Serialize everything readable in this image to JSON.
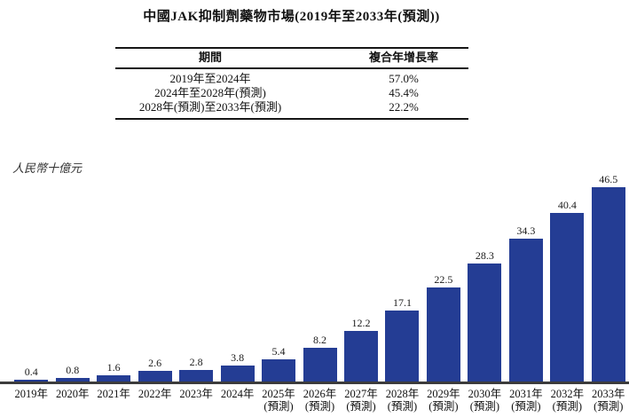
{
  "title": "中國JAK抑制劑藥物市場(2019年至2033年(預測))",
  "cagr_table": {
    "headers": {
      "period": "期間",
      "cagr": "複合年增長率"
    },
    "rows": [
      {
        "period": "2019年至2024年",
        "cagr": "57.0%"
      },
      {
        "period": "2024年至2028年(預測)",
        "cagr": "45.4%"
      },
      {
        "period": "2028年(預測)至2033年(預測)",
        "cagr": "22.2%"
      }
    ]
  },
  "unit_label": "人民幣十億元",
  "chart_data": {
    "type": "bar",
    "title": "中國JAK抑制劑藥物市場(2019年至2033年(預測))",
    "ylabel": "人民幣十億元",
    "categories": [
      "2019年",
      "2020年",
      "2021年",
      "2022年",
      "2023年",
      "2024年",
      "2025年",
      "2026年",
      "2027年",
      "2028年",
      "2029年",
      "2030年",
      "2031年",
      "2032年",
      "2033年"
    ],
    "sublabels": [
      "",
      "",
      "",
      "",
      "",
      "",
      "(預測)",
      "(預測)",
      "(預測)",
      "(預測)",
      "(預測)",
      "(預測)",
      "(預測)",
      "(預測)",
      "(預測)"
    ],
    "values": [
      0.4,
      0.8,
      1.6,
      2.6,
      2.8,
      3.8,
      5.4,
      8.2,
      12.2,
      17.1,
      22.5,
      28.3,
      34.3,
      40.4,
      46.5
    ],
    "ylim": [
      0,
      50
    ],
    "grid": false,
    "legend": false,
    "bar_color": "#243d94",
    "axis_line_color": "#3c3c3c"
  }
}
